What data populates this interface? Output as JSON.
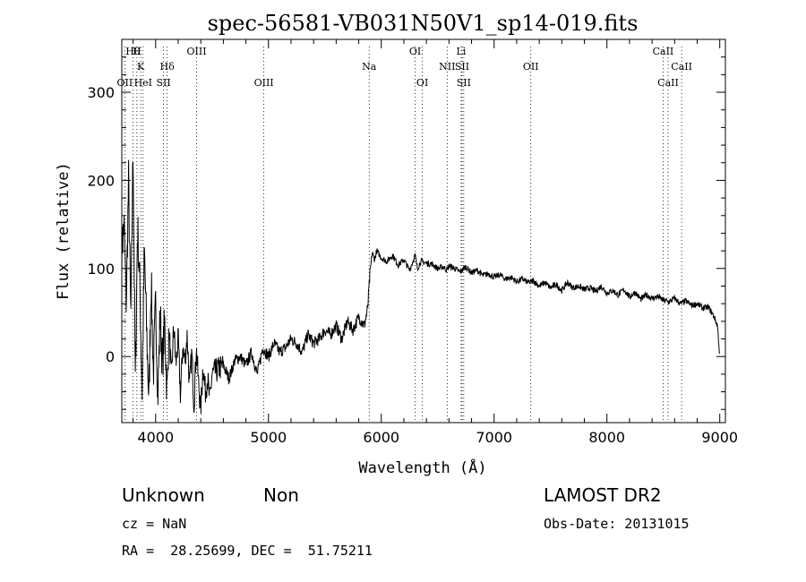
{
  "chart_data": {
    "type": "line",
    "title": "spec-56581-VB031N50V1_sp14-019.fits",
    "xlabel": "Wavelength (Å)",
    "ylabel": "Flux (relative)",
    "xlim": [
      3700,
      9050
    ],
    "ylim": [
      -75,
      360
    ],
    "x_ticks": [
      4000,
      5000,
      6000,
      7000,
      8000,
      9000
    ],
    "y_ticks": [
      0,
      100,
      200,
      300
    ],
    "grid": false,
    "spectrum": {
      "x": [
        3700,
        3720,
        3740,
        3760,
        3780,
        3800,
        3820,
        3840,
        3860,
        3880,
        3900,
        3920,
        3940,
        3960,
        3980,
        4000,
        4020,
        4040,
        4060,
        4080,
        4100,
        4120,
        4140,
        4160,
        4180,
        4200,
        4220,
        4240,
        4260,
        4280,
        4300,
        4320,
        4340,
        4360,
        4380,
        4400,
        4420,
        4440,
        4460,
        4480,
        4500,
        4550,
        4600,
        4650,
        4700,
        4750,
        4800,
        4850,
        4900,
        4950,
        5000,
        5050,
        5100,
        5150,
        5200,
        5250,
        5300,
        5350,
        5400,
        5450,
        5500,
        5550,
        5600,
        5650,
        5700,
        5750,
        5800,
        5850,
        5880,
        5900,
        5920,
        5940,
        5960,
        6000,
        6050,
        6100,
        6150,
        6200,
        6250,
        6300,
        6320,
        6350,
        6400,
        6450,
        6500,
        6550,
        6580,
        6600,
        6650,
        6700,
        6750,
        6800,
        6850,
        6900,
        6950,
        7000,
        7050,
        7100,
        7150,
        7200,
        7250,
        7300,
        7350,
        7400,
        7450,
        7500,
        7550,
        7600,
        7650,
        7700,
        7750,
        7800,
        7850,
        7900,
        7950,
        8000,
        8050,
        8100,
        8150,
        8200,
        8250,
        8300,
        8350,
        8400,
        8450,
        8500,
        8550,
        8600,
        8650,
        8700,
        8750,
        8800,
        8850,
        8900,
        8950,
        8980,
        9000
      ],
      "y": [
        120,
        150,
        60,
        200,
        40,
        240,
        -30,
        150,
        80,
        -40,
        120,
        30,
        -50,
        90,
        -20,
        60,
        -45,
        50,
        -10,
        40,
        -40,
        30,
        -25,
        35,
        -10,
        20,
        -45,
        10,
        -5,
        25,
        -35,
        5,
        -55,
        10,
        -30,
        -60,
        -10,
        -40,
        -25,
        -50,
        -20,
        -15,
        -10,
        -25,
        -5,
        0,
        -10,
        5,
        -20,
        10,
        0,
        15,
        5,
        10,
        20,
        15,
        5,
        25,
        15,
        20,
        30,
        25,
        35,
        20,
        40,
        30,
        45,
        35,
        55,
        95,
        118,
        110,
        120,
        112,
        108,
        115,
        104,
        110,
        98,
        115,
        100,
        108,
        106,
        105,
        100,
        102,
        98,
        103,
        100,
        96,
        102,
        95,
        98,
        92,
        94,
        90,
        93,
        88,
        90,
        85,
        88,
        84,
        86,
        80,
        84,
        78,
        82,
        75,
        84,
        78,
        80,
        76,
        78,
        74,
        80,
        72,
        75,
        70,
        76,
        68,
        73,
        65,
        70,
        66,
        68,
        64,
        62,
        66,
        60,
        63,
        58,
        60,
        55,
        56,
        45,
        35,
        0
      ]
    },
    "lines": [
      {
        "label": "Hθ",
        "x": 3798,
        "row": 1
      },
      {
        "label": "H",
        "x": 3834,
        "row": 1
      },
      {
        "label": "K",
        "x": 3868,
        "row": 2
      },
      {
        "label": "Hδ",
        "x": 4102,
        "row": 2
      },
      {
        "label": "OII",
        "x": 3727,
        "row": 3
      },
      {
        "label": "HeI",
        "x": 3889,
        "row": 3
      },
      {
        "label": "SII",
        "x": 4070,
        "row": 3
      },
      {
        "label": "OIII",
        "x": 4363,
        "row": 1
      },
      {
        "label": "OIII",
        "x": 4959,
        "row": 3
      },
      {
        "label": "Na",
        "x": 5893,
        "row": 2
      },
      {
        "label": "OI",
        "x": 6300,
        "row": 1
      },
      {
        "label": "OI",
        "x": 6364,
        "row": 3
      },
      {
        "label": "Li",
        "x": 6708,
        "row": 1
      },
      {
        "label": "NII",
        "x": 6584,
        "row": 2
      },
      {
        "label": "SII",
        "x": 6716,
        "row": 2
      },
      {
        "label": "SII",
        "x": 6731,
        "row": 3
      },
      {
        "label": "OII",
        "x": 7325,
        "row": 2
      },
      {
        "label": "CaII",
        "x": 8498,
        "row": 1
      },
      {
        "label": "CaII",
        "x": 8662,
        "row": 2
      },
      {
        "label": "CaII",
        "x": 8542,
        "row": 3
      }
    ]
  },
  "footer": {
    "class_text": "Unknown",
    "subclass_text": "Non",
    "survey": "LAMOST DR2",
    "cz": "cz = NaN",
    "obs_date": "Obs-Date: 20131015",
    "coords": "RA =  28.25699, DEC =  51.75211"
  },
  "colors": {
    "ink": "#000000",
    "background": "#ffffff"
  }
}
